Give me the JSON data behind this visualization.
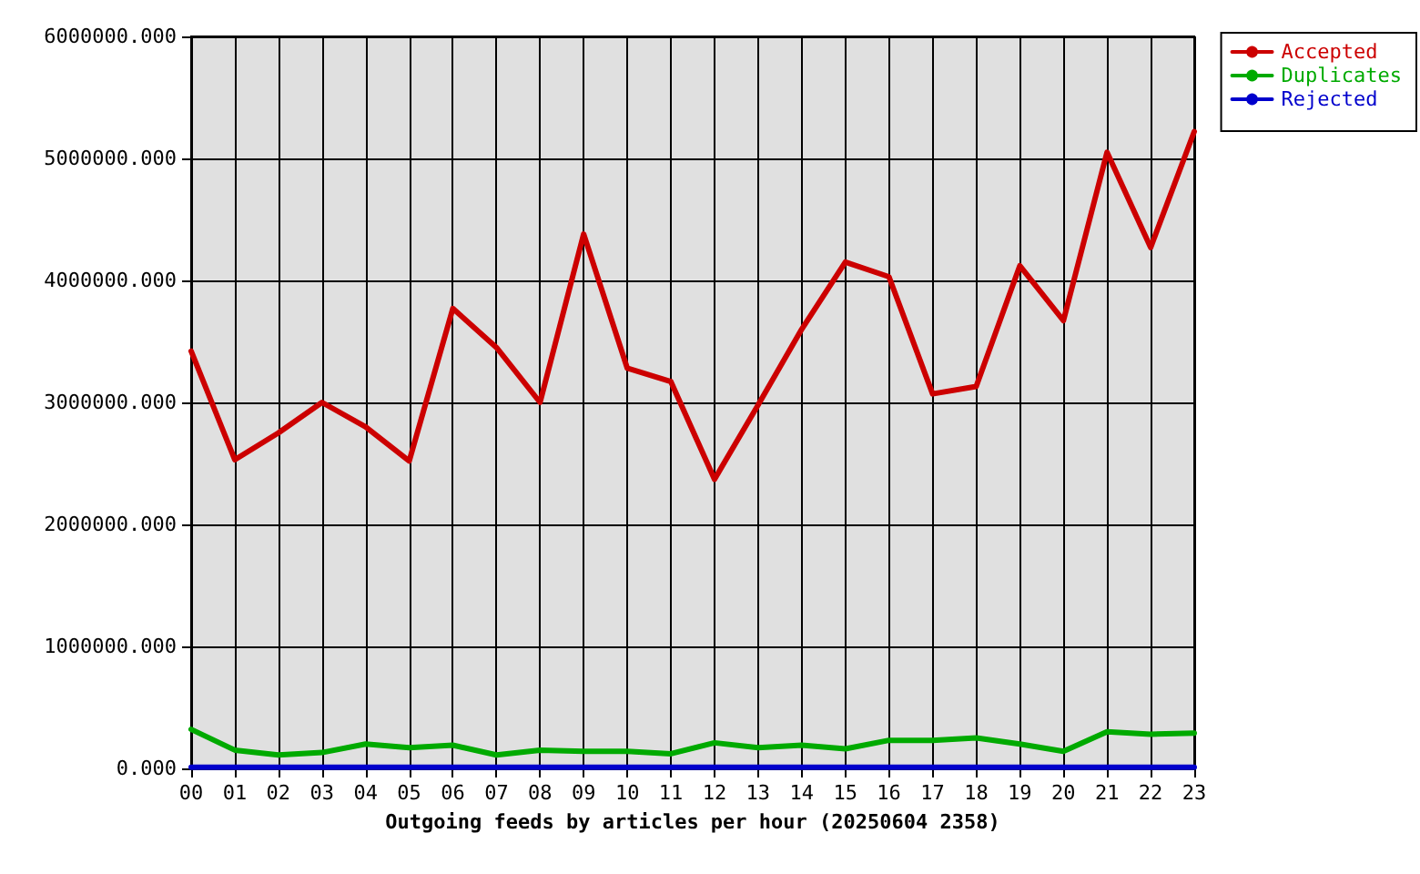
{
  "chart_data": {
    "type": "line",
    "xlabel": "Outgoing feeds by articles per hour (20250604 2358)",
    "categories": [
      "00",
      "01",
      "02",
      "03",
      "04",
      "05",
      "06",
      "07",
      "08",
      "09",
      "10",
      "11",
      "12",
      "13",
      "14",
      "15",
      "16",
      "17",
      "18",
      "19",
      "20",
      "21",
      "22",
      "23"
    ],
    "series": [
      {
        "name": "Accepted",
        "color": "#cc0000",
        "values": [
          3420000,
          2530000,
          2750000,
          3000000,
          2800000,
          2520000,
          3770000,
          3450000,
          3000000,
          4380000,
          3280000,
          3170000,
          2370000,
          2980000,
          3600000,
          4150000,
          4030000,
          3070000,
          3130000,
          4120000,
          3670000,
          5050000,
          4270000,
          5220000
        ]
      },
      {
        "name": "Duplicates",
        "color": "#00aa00",
        "values": [
          320000,
          150000,
          110000,
          130000,
          200000,
          170000,
          190000,
          110000,
          150000,
          140000,
          140000,
          120000,
          210000,
          170000,
          190000,
          160000,
          230000,
          230000,
          250000,
          200000,
          140000,
          300000,
          280000,
          290000
        ]
      },
      {
        "name": "Rejected",
        "color": "#0000cc",
        "values": [
          10000,
          10000,
          10000,
          10000,
          10000,
          10000,
          10000,
          10000,
          10000,
          10000,
          10000,
          10000,
          10000,
          10000,
          10000,
          10000,
          10000,
          10000,
          10000,
          10000,
          10000,
          10000,
          10000,
          10000
        ]
      }
    ],
    "ylim": [
      0,
      6000000
    ],
    "yticks": [
      {
        "value": 0,
        "label": "0.000"
      },
      {
        "value": 1000000,
        "label": "1000000.000"
      },
      {
        "value": 2000000,
        "label": "2000000.000"
      },
      {
        "value": 3000000,
        "label": "3000000.000"
      },
      {
        "value": 4000000,
        "label": "4000000.000"
      },
      {
        "value": 5000000,
        "label": "5000000.000"
      },
      {
        "value": 6000000,
        "label": "6000000.000"
      }
    ],
    "grid": true,
    "legend": "top right",
    "line_style": "solid"
  }
}
